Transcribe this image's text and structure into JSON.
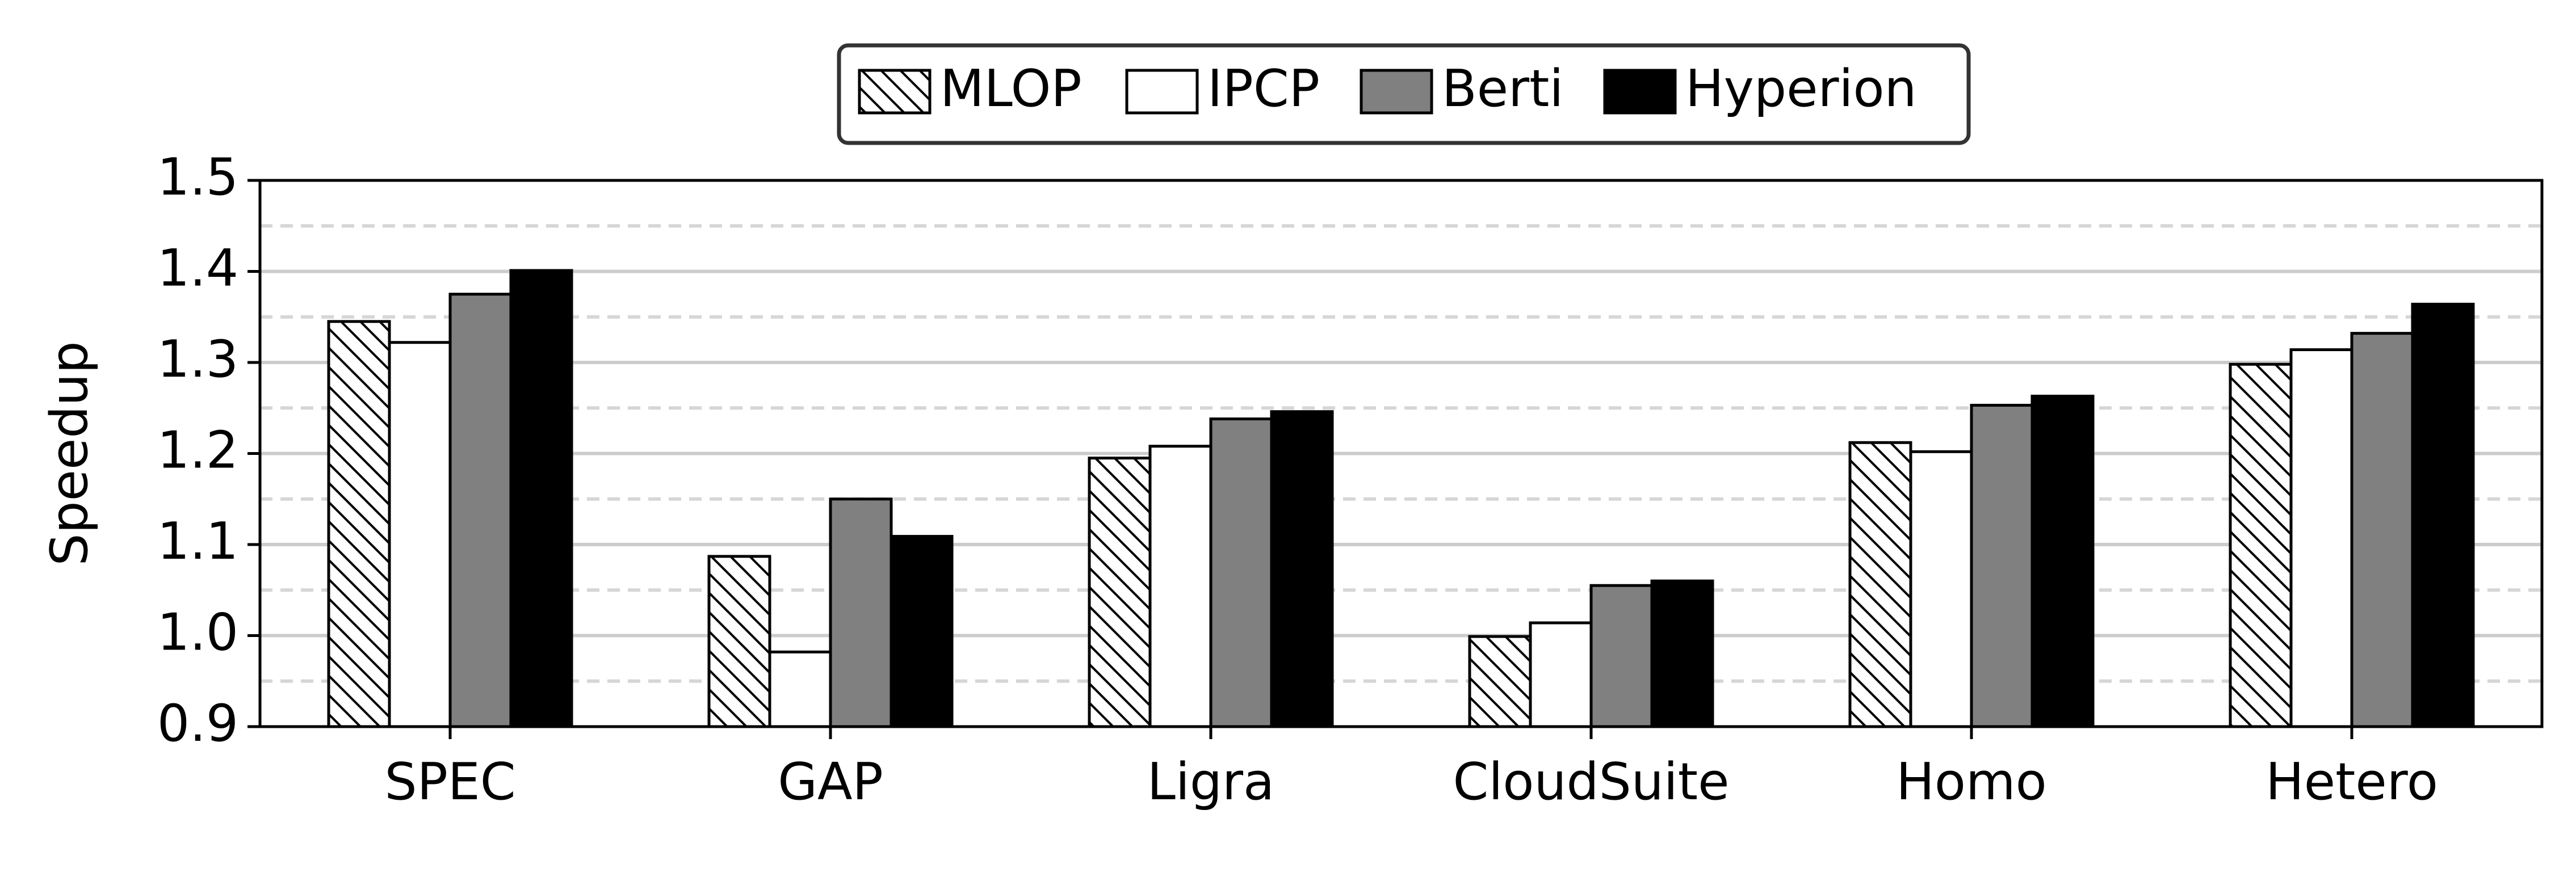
{
  "chart_data": {
    "type": "bar",
    "title": "",
    "xlabel": "",
    "ylabel": "Speedup",
    "ylim": [
      0.9,
      1.5
    ],
    "yticks": [
      "0.9",
      "1.0",
      "1.1",
      "1.2",
      "1.3",
      "1.4",
      "1.5"
    ],
    "grid": "horizontal (solid major, dashed minor)",
    "legend_position": "top-center",
    "categories": [
      "SPEC",
      "GAP",
      "Ligra",
      "CloudSuite",
      "Homo",
      "Hetero"
    ],
    "series": [
      {
        "name": "MLOP",
        "fill": "hatch",
        "values": [
          1.345,
          1.087,
          1.195,
          0.999,
          1.212,
          1.298
        ]
      },
      {
        "name": "IPCP",
        "fill": "#ffffff",
        "values": [
          1.322,
          0.982,
          1.208,
          1.014,
          1.202,
          1.314
        ]
      },
      {
        "name": "Berti",
        "fill": "#808080",
        "values": [
          1.375,
          1.15,
          1.238,
          1.055,
          1.253,
          1.332
        ]
      },
      {
        "name": "Hyperion",
        "fill": "#000000",
        "values": [
          1.401,
          1.109,
          1.246,
          1.06,
          1.263,
          1.364
        ]
      }
    ]
  }
}
